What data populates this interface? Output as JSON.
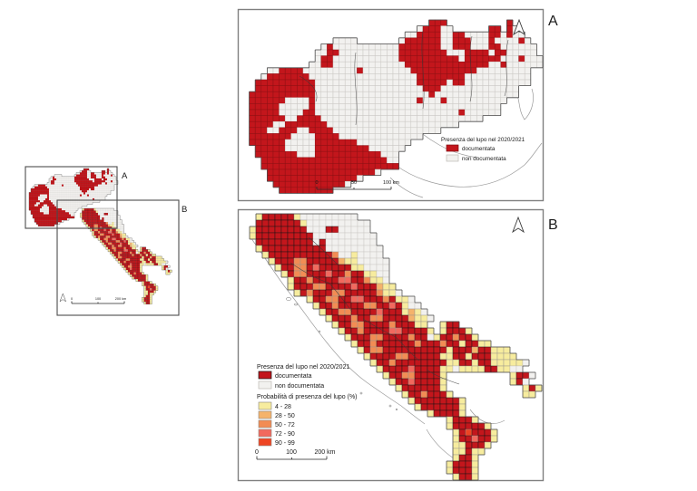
{
  "figure": {
    "panel_a_label": "A",
    "panel_b_label": "B",
    "overview_label_a": "A",
    "overview_label_b": "B"
  },
  "legend": {
    "presence_title": "Presenza del lupo nel 2020/2021",
    "documentata": "documentata",
    "non_documentata": "non documentata",
    "prob_title": "Probabilità di presenza del lupo (%)",
    "classes": [
      "4 - 28",
      "28 - 50",
      "50 - 72",
      "72 - 90",
      "90 - 99"
    ]
  },
  "scalebars": {
    "a": [
      "0",
      "50",
      "100 km"
    ],
    "b": [
      "0",
      "100",
      "200 km"
    ],
    "overview": [
      "0",
      "100",
      "200 km"
    ]
  },
  "colors": {
    "documentata": "#c3161c",
    "non_documentata": "#f2f1ef",
    "p4_28": "#f7ec9e",
    "p28_50": "#f5b36b",
    "p50_72": "#f28c54",
    "p72_90": "#f2695e",
    "p90_99": "#ee4423",
    "land_outline": "#4d4d4d",
    "white_cell_border": "#c9c7c3",
    "prob_cell_border": "#9a958d",
    "doc_cell_border_a": "#8e1013",
    "doc_cell_border_b": "#141414"
  },
  "map_grids": {
    "cell_classes": {
      "D": "documentata",
      "w": "non_documentata",
      "y": "p4_28",
      "o": "p28_50",
      "r": "p50_72",
      "s": "p72_90",
      "R": "p90_99"
    },
    "panel_a_rows": [
      "...............................DDD..........D.....",
      ".............................wDDDww......DD.Dw....",
      "...........................wwDDDDwwDDwwwwDDwDww...",
      "...............wwww.......wDDDDDDwwDDDwwwDwwwwDw..",
      ".............wDwwwwwwwwwwwDDDDDDDwwDDDwwwDDwwwwww.",
      "............wwDDwwwwwwwwwwDDDDDDDDwwwDDDDwDDwwwww.",
      "............wDDwwwwwwwwwwwDDDDDDDDDDwDDDDDDwwwDwww",
      "...........wwDDwwwwwwwwwwwwDDDDDDDDDDDDDDwwDwwwwww",
      "....wwDDDDwwwwwwwwwDwwwwwwwwDDDDDDDDDDDwwwwwwwww..",
      "...wDDDDDDDwwwwwwwwwwwwwwwwwwDDDDDDDDwwwwwwwwwww..",
      "..DDDDDDDDDDwwwwwwwwwwwwwwwwwDDDDDwDDwwwwwwwwwww..",
      "..DDDDDDDDDDwwwwwwwwwwwwwwwwwwDDDwwwwwwwwwwwww...",
      ".DDDDDDDDDDDwwwwwwwwwwwwwwwwwwwDwwwwwwwwwwwwww....",
      ".DDDDDDwwwwDwwwwwwwwwwwwwwwwwDwwwDwwwwwwwwww......",
      ".DDDDDwwwwwDwwwwwwwwwwwwwwwwwwwwwwwwwwwwwww.......",
      ".DDDDDwwwwDDwwwwwwwwwwwwwwwwwwwwwwwwDwwwwww.......",
      ".DDDDDDwwDDDDwwwwwwwwwwwwwwwwwwwwwwwwwww..........",
      ".DDDDwwDDDDDDDwwwwwwwwwwwwwwwwwwwwww.............",
      ".DDDwwDDDwwDDDDwwwwwwwwwwwwwwwwww................",
      ".DDDDDDDwwwwDDDDwwwwwwwwwwwwww....................",
      ".DDDDDDwwwwwDDDDDDDwwwwwwwww......................",
      "..DDDDDwwwwwDDDDDDDDDwwwwww.......................",
      "..DDDDDDDwwwDDDDDDDDDDDwww........................",
      "...DDDDDDDDDDDDDDDDDDDDDww........................",
      "...DDDDDDDDDDDDDDDDDDDDDDD........................",
      "....DDDDDDDDDDDDDDDDDDw...........................",
      "....DDDDDDDDDDDDDDDw..............................",
      ".....DDDDDDDDDDDDw................................",
      "......DDDDDDDDD..................................."
    ],
    "panel_b_rows": [
      "..yDDDDDywwwwwwwww",
      "..DDDDDDDywwwwwwwwww",
      ".yDDDDDDDDwwwDDwwwww",
      ".yDDDDDDDDDwwwwwwwwww",
      "..DDDDDDDDDwDwwwwwwww",
      "..yDDDDDDDDDDwwwwwwwww",
      "...yDDDDDDDDDDrwwywwww",
      "....yDDDrrDDDDDoyywwwww",
      ".....yDDrrDsDDDDDyywwww",
      "......yDrrDDDsDDrDDyyww",
      ".......yDDrDDDDssDDryyw",
      ".......yDDDrrDDDDsDDDoyy",
      "........yDrDDDrrDDDDDryyw",
      "..........yDDrrDDssDDDrDyyw",
      "...........yDDrDDDDrrDDsDyww",
      "............yDDrrDDDDsDDDyoyw",
      ".............yDDDrDDrrDDDDoyyw",
      "..............yDDrrDDDDrDDDyy..yDD",
      "...............yDDrDDDDssDDDDy.yDDDy",
      "................yDDDrrDDDDrDDwyDDrDDy",
      ".................yDDrDDDDDDrDDDrDDyDDyy",
      "..................yDrrDDDDDDDDDDyDDDoDDyyy",
      "...................yDDDDrrDDDDDyyDDyDDDyyyy",
      "....................yDDrDDDDDDDDyyDDyDDyyyyyw",
      ".....................yDDDDsDDDDyywyyyyDDyyww",
      "......................yDDrrDDDDy..........yDDw",
      ".......................yDDsDDDDy..........yDw",
      "........................yDDDDDDy............yDy",
      ".........................yDDrDDDy...........yy",
      "..........................yDDDDDDDy",
      "...........................yDDDDDDy",
      ".............................yDDDDy",
      "................................yDDDy",
      "................................yDDDDDy",
      ".................................yDRDDDy",
      ".................................yDDsDDy",
      ".................................yyDDDy",
      ".................................yyDyy",
      ".................................yDDy",
      "................................yDDDy",
      "................................yDDDy",
      ".................................yDDy"
    ]
  }
}
